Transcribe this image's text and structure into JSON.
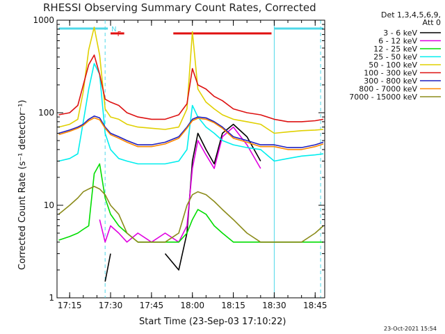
{
  "chart_data": {
    "type": "line",
    "title": "RHESSI Observing Summary Count Rates, Corrected",
    "xlabel": "Start Time (23-Sep-03 17:10:22)",
    "ylabel": "Corrected Count Rate (s⁻¹ detector⁻¹)",
    "yscale": "log",
    "ylim": [
      1,
      1000
    ],
    "xlim": [
      "17:10:22",
      "18:48:30"
    ],
    "x_ticks": [
      "17:15",
      "17:30",
      "17:45",
      "18:00",
      "18:15",
      "18:30",
      "18:45"
    ],
    "y_ticks": [
      "1",
      "10",
      "100",
      "1000"
    ],
    "legend_header": [
      "Det 1,3,4,5,6,9,",
      "Att 0"
    ],
    "legend_position": "right",
    "timestamp": "23-Oct-2021 15:54",
    "flags": [
      {
        "label": "N",
        "color": "#4fd8e8",
        "segments": [
          [
            "17:11",
            "17:29"
          ],
          [
            "18:30",
            "18:48"
          ]
        ]
      },
      {
        "label": "F",
        "color": "#e01010",
        "segments": [
          [
            "17:30",
            "17:35"
          ],
          [
            "17:53",
            "18:29"
          ]
        ]
      }
    ],
    "markers": [
      {
        "time": "17:28",
        "style": "dashed",
        "color": "#4fd8e8"
      },
      {
        "time": "18:30",
        "style": "solid",
        "color": "#4fd8e8"
      },
      {
        "time": "18:47",
        "style": "dashed",
        "color": "#4fd8e8"
      }
    ],
    "x": [
      "17:11",
      "17:15",
      "17:18",
      "17:20",
      "17:22",
      "17:24",
      "17:26",
      "17:28",
      "17:30",
      "17:33",
      "17:36",
      "17:40",
      "17:45",
      "17:50",
      "17:55",
      "17:58",
      "18:00",
      "18:02",
      "18:05",
      "18:08",
      "18:11",
      "18:15",
      "18:20",
      "18:25",
      "18:30",
      "18:35",
      "18:40",
      "18:45",
      "18:48"
    ],
    "series": [
      {
        "name": "3 - 6 keV",
        "color": "#000000",
        "values": [
          null,
          null,
          null,
          null,
          null,
          null,
          null,
          1.5,
          3,
          null,
          null,
          null,
          null,
          3,
          2,
          5,
          30,
          60,
          40,
          28,
          60,
          75,
          55,
          30,
          null,
          null,
          null,
          null,
          null
        ]
      },
      {
        "name": "6 - 12 keV",
        "color": "#e000e0",
        "values": [
          null,
          null,
          null,
          null,
          null,
          null,
          7,
          4,
          6,
          5,
          4,
          5,
          4,
          5,
          4,
          6,
          25,
          50,
          35,
          25,
          55,
          70,
          45,
          25,
          null,
          null,
          null,
          null,
          null
        ]
      },
      {
        "name": "12 - 25 keV",
        "color": "#00dd00",
        "values": [
          4.2,
          4.6,
          5,
          5.5,
          6,
          22,
          28,
          12,
          8,
          6,
          5,
          4,
          4,
          4,
          4,
          5,
          7,
          9,
          8,
          6,
          5,
          4,
          4,
          4,
          4,
          4,
          4,
          4,
          4
        ]
      },
      {
        "name": "25 - 50 keV",
        "color": "#00eeee",
        "values": [
          30,
          32,
          36,
          80,
          180,
          340,
          260,
          60,
          40,
          32,
          30,
          28,
          28,
          28,
          30,
          40,
          120,
          90,
          70,
          60,
          50,
          45,
          42,
          40,
          30,
          32,
          34,
          35,
          36
        ]
      },
      {
        "name": "50 - 100 keV",
        "color": "#e0d000",
        "values": [
          70,
          75,
          85,
          170,
          480,
          840,
          420,
          110,
          90,
          85,
          75,
          70,
          68,
          66,
          70,
          110,
          750,
          180,
          130,
          110,
          95,
          85,
          80,
          75,
          60,
          62,
          64,
          65,
          66
        ]
      },
      {
        "name": "100 - 300 keV",
        "color": "#dd1111",
        "values": [
          95,
          100,
          120,
          200,
          330,
          420,
          260,
          140,
          130,
          120,
          100,
          90,
          85,
          85,
          95,
          125,
          300,
          200,
          180,
          150,
          135,
          110,
          100,
          95,
          85,
          80,
          80,
          82,
          85
        ]
      },
      {
        "name": "300 - 800 keV",
        "color": "#1f1fbf",
        "values": [
          60,
          65,
          70,
          75,
          85,
          92,
          88,
          70,
          60,
          55,
          50,
          45,
          45,
          48,
          55,
          70,
          85,
          90,
          88,
          80,
          70,
          55,
          50,
          45,
          45,
          42,
          42,
          45,
          48
        ]
      },
      {
        "name": "800 - 7000 keV",
        "color": "#ff8800",
        "values": [
          58,
          63,
          68,
          73,
          82,
          88,
          84,
          68,
          58,
          53,
          48,
          43,
          43,
          46,
          53,
          68,
          82,
          87,
          85,
          78,
          68,
          53,
          48,
          43,
          43,
          40,
          40,
          43,
          46
        ]
      },
      {
        "name": "7000 - 15000 keV",
        "color": "#8b8b1a",
        "values": [
          8,
          10,
          12,
          14,
          15,
          16,
          15,
          13,
          10,
          8,
          5,
          4,
          4,
          4,
          5,
          10,
          13,
          14,
          13,
          11,
          9,
          7,
          5,
          4,
          4,
          4,
          4,
          5,
          6
        ]
      }
    ]
  }
}
